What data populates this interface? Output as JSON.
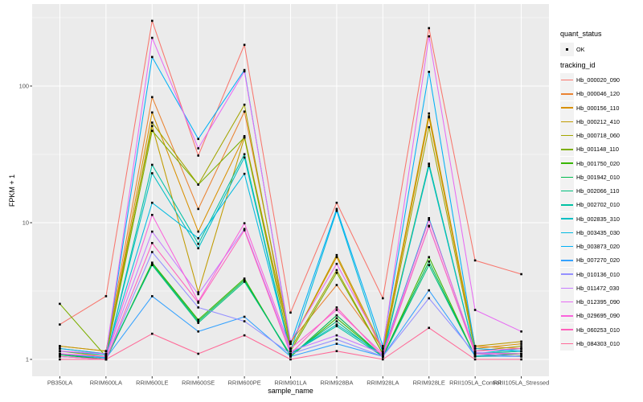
{
  "figure": {
    "background": "#FFFFFF",
    "panel_background": "#EBEBEB",
    "grid_color": "#FFFFFF",
    "tick_mark_color": "#333333",
    "tick_label_color": "#4D4D4D",
    "legend_key_background": "#F2F2F2"
  },
  "legend": {
    "quant_status_title": "quant_status",
    "ok_label": "OK",
    "tracking_id_title": "tracking_id"
  },
  "chart_data": {
    "type": "line",
    "title": "",
    "xlabel": "sample_name",
    "ylabel": "FPKM + 1",
    "y_scale": "log10",
    "y_ticks": [
      1,
      10,
      100
    ],
    "y_minor_ticks": [
      3.162,
      31.62,
      316.2
    ],
    "ylim": [
      0.75,
      400
    ],
    "grid": true,
    "legend_position": "right",
    "point_shape": "square",
    "point_color": "#000000",
    "quant_status_values": [
      "OK"
    ],
    "categories": [
      "PB350LA",
      "RRIM600LA",
      "RRIM600LE",
      "RRIM600SE",
      "RRIM600PE",
      "RRIM901LA",
      "RRIM928BA",
      "RRIM928LA",
      "RRIM928LE",
      "RRII105LA_Control",
      "RRII105LA_Stressed"
    ],
    "series": [
      {
        "name": "Hb_000020_090",
        "color": "#F8766D",
        "values": [
          1.8,
          2.9,
          300,
          31,
          200,
          2.2,
          14,
          2.8,
          265,
          5.3,
          4.2
        ]
      },
      {
        "name": "Hb_000046_120",
        "color": "#EA8331",
        "values": [
          1.25,
          1.15,
          83,
          12.6,
          65,
          1.35,
          3.5,
          1.2,
          60,
          1.25,
          1.2
        ]
      },
      {
        "name": "Hb_000156_110",
        "color": "#D89000",
        "values": [
          1.2,
          1.1,
          64,
          8.6,
          43,
          1.3,
          5.6,
          1.15,
          59,
          1.2,
          1.3
        ]
      },
      {
        "name": "Hb_000212_410",
        "color": "#C09B00",
        "values": [
          1.25,
          1.15,
          51,
          3.1,
          42,
          1.3,
          5.8,
          1.2,
          63,
          1.25,
          1.35
        ]
      },
      {
        "name": "Hb_000718_060",
        "color": "#A3A500",
        "values": [
          1.15,
          1.05,
          54,
          19,
          73,
          1.2,
          4.5,
          1.1,
          50,
          1.15,
          1.25
        ]
      },
      {
        "name": "Hb_001148_110",
        "color": "#7CAE00",
        "values": [
          2.55,
          1.05,
          47,
          19,
          42,
          1.15,
          4.3,
          1.1,
          27,
          1.1,
          1.15
        ]
      },
      {
        "name": "Hb_001750_020",
        "color": "#39B600",
        "values": [
          1.1,
          1.0,
          5.1,
          1.95,
          3.9,
          1.05,
          2.0,
          1.05,
          5.6,
          1.05,
          1.1
        ]
      },
      {
        "name": "Hb_001942_010",
        "color": "#00BB4E",
        "values": [
          1.08,
          1.0,
          5.0,
          1.9,
          3.8,
          1.05,
          2.1,
          1.05,
          5.2,
          1.05,
          1.06
        ]
      },
      {
        "name": "Hb_002066_110",
        "color": "#00BF7D",
        "values": [
          1.1,
          1.02,
          4.9,
          1.85,
          3.7,
          1.08,
          1.9,
          1.04,
          4.9,
          1.06,
          1.1
        ]
      },
      {
        "name": "Hb_002702_010",
        "color": "#00C1A3",
        "values": [
          1.05,
          1.0,
          26.5,
          7.0,
          31.7,
          1.1,
          1.75,
          1.05,
          27,
          1.1,
          1.15
        ]
      },
      {
        "name": "Hb_002835_310",
        "color": "#00BFC4",
        "values": [
          1.1,
          1.03,
          23,
          6.5,
          30,
          1.1,
          1.8,
          1.08,
          26,
          1.1,
          1.2
        ]
      },
      {
        "name": "Hb_003435_030",
        "color": "#00BAE0",
        "values": [
          1.15,
          1.08,
          14,
          7.7,
          22.8,
          1.15,
          12.2,
          1.12,
          10.8,
          1.12,
          1.1
        ]
      },
      {
        "name": "Hb_003873_020",
        "color": "#00B0F6",
        "values": [
          1.2,
          1.1,
          163,
          41,
          131,
          1.3,
          12.6,
          1.25,
          127,
          1.2,
          1.15
        ]
      },
      {
        "name": "Hb_007270_020",
        "color": "#35A2FF",
        "values": [
          1.1,
          1.02,
          2.9,
          1.6,
          2.05,
          1.05,
          1.3,
          1.05,
          3.2,
          1.06,
          1.05
        ]
      },
      {
        "name": "Hb_010136_010",
        "color": "#9590FF",
        "values": [
          1.05,
          1.0,
          6.1,
          2.4,
          1.9,
          1.1,
          1.4,
          1.05,
          2.8,
          1.1,
          1.05
        ]
      },
      {
        "name": "Hb_011472_030",
        "color": "#C77CFF",
        "values": [
          1.1,
          1.05,
          8.6,
          3.0,
          9.0,
          1.15,
          1.5,
          1.1,
          9.4,
          1.12,
          1.1
        ]
      },
      {
        "name": "Hb_012395_090",
        "color": "#E76BF3",
        "values": [
          1.15,
          1.1,
          225,
          35,
          128,
          1.35,
          5.0,
          1.2,
          231,
          2.3,
          1.6
        ]
      },
      {
        "name": "Hb_029695_090",
        "color": "#FA62DB",
        "values": [
          1.1,
          1.05,
          11.4,
          2.65,
          9.9,
          1.2,
          2.3,
          1.1,
          10.5,
          1.15,
          1.2
        ]
      },
      {
        "name": "Hb_060253_010",
        "color": "#FF62BC",
        "values": [
          1.05,
          1.0,
          7.1,
          2.6,
          8.8,
          1.1,
          2.4,
          1.05,
          9.5,
          1.1,
          1.1
        ]
      },
      {
        "name": "Hb_084303_010",
        "color": "#FF6A98",
        "values": [
          1.0,
          1.0,
          1.54,
          1.1,
          1.5,
          1.0,
          1.15,
          1.0,
          1.7,
          1.0,
          1.0
        ]
      }
    ]
  }
}
